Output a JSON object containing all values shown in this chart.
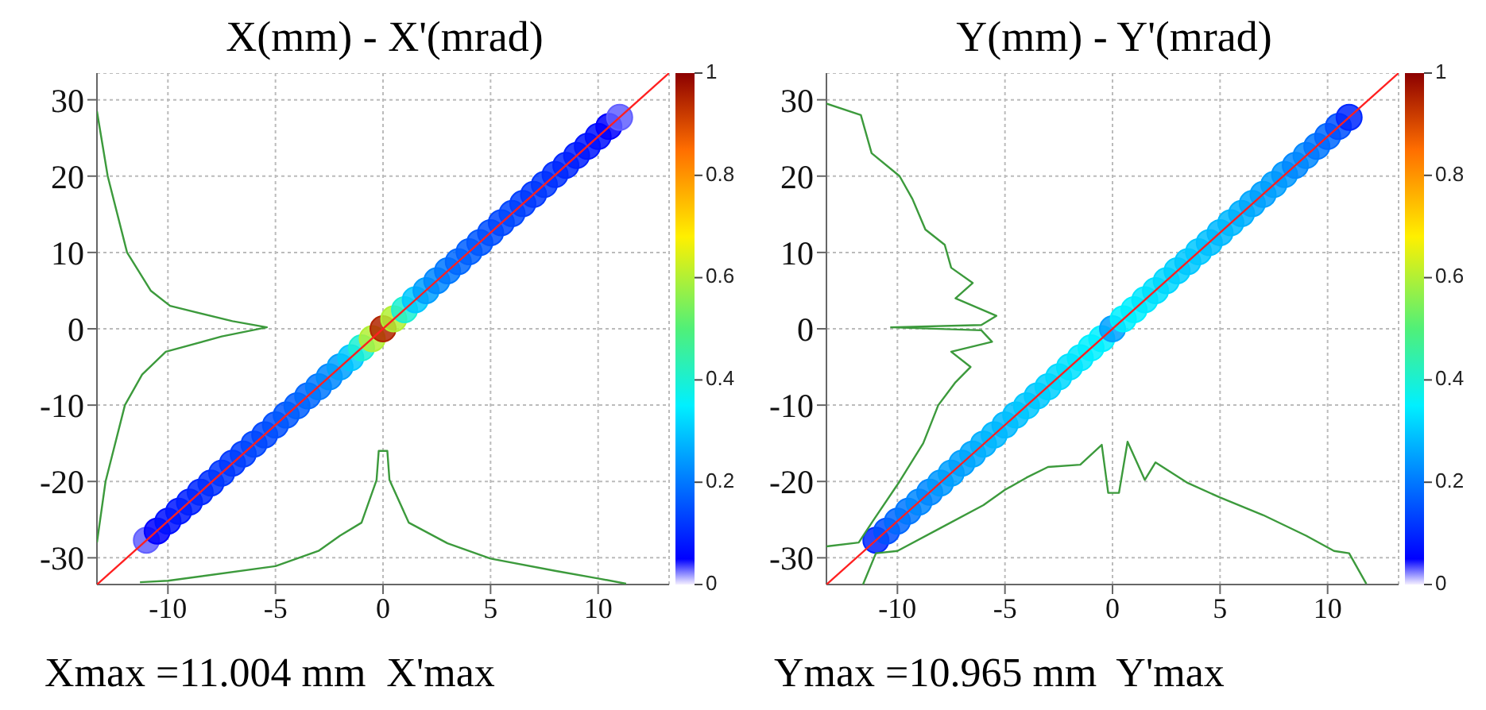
{
  "chart_data": [
    {
      "type": "scatter",
      "title": "X(mm) - X'(mrad)",
      "annotations": [
        "Xmax =11.004 mm  X'max"
      ],
      "xlim": [
        -13.3,
        13.3
      ],
      "ylim": [
        -33.5,
        33.5
      ],
      "xticks": [
        -10,
        -5,
        0,
        5,
        10
      ],
      "yticks": [
        -30,
        -20,
        -10,
        0,
        10,
        20,
        30
      ],
      "grid": true,
      "clim": [
        0,
        1
      ],
      "cticks": [
        0,
        0.2,
        0.4,
        0.6,
        0.8,
        1
      ],
      "series": [
        {
          "x": [
            -11,
            -10.5,
            -10,
            -9.5,
            -9,
            -8.5,
            -8,
            -7.5,
            -7,
            -6.5,
            -6,
            -5.5,
            -5,
            -4.5,
            -4,
            -3.5,
            -3,
            -2.5,
            -2,
            -1.5,
            -1,
            -0.5,
            0,
            0.5,
            1,
            1.5,
            2,
            2.5,
            3,
            3.5,
            4,
            4.5,
            5,
            5.5,
            6,
            6.5,
            7,
            7.5,
            8,
            8.5,
            9,
            9.5,
            10,
            10.5,
            11
          ],
          "values": [
            -27.7,
            -26.5,
            -25.2,
            -23.9,
            -22.7,
            -21.4,
            -20.2,
            -18.9,
            -17.6,
            -16.4,
            -15.1,
            -13.9,
            -12.6,
            -11.3,
            -10.1,
            -8.8,
            -7.6,
            -6.3,
            -5,
            -3.8,
            -2.5,
            -1.3,
            0,
            1.3,
            2.5,
            3.8,
            5,
            6.3,
            7.6,
            8.8,
            10.1,
            11.3,
            12.6,
            13.9,
            15.1,
            16.4,
            17.6,
            18.9,
            20.2,
            21.4,
            22.7,
            23.9,
            25.2,
            26.5,
            27.7
          ],
          "cvalues": [
            0.03,
            0.05,
            0.07,
            0.08,
            0.09,
            0.1,
            0.11,
            0.12,
            0.12,
            0.13,
            0.14,
            0.14,
            0.15,
            0.16,
            0.17,
            0.18,
            0.2,
            0.22,
            0.25,
            0.3,
            0.4,
            0.6,
            0.95,
            0.6,
            0.4,
            0.3,
            0.25,
            0.22,
            0.2,
            0.18,
            0.17,
            0.16,
            0.15,
            0.14,
            0.14,
            0.13,
            0.12,
            0.12,
            0.11,
            0.1,
            0.09,
            0.08,
            0.07,
            0.05,
            0.03
          ],
          "colors": [
            "#6260ff",
            "#0000ff",
            "#0010ff",
            "#0018ff",
            "#0020ff",
            "#0028ff",
            "#0030ff",
            "#0038ff",
            "#0038ff",
            "#0040ff",
            "#0048ff",
            "#0048ff",
            "#0050ff",
            "#0058ff",
            "#0060ff",
            "#0068ff",
            "#0078ff",
            "#0088ff",
            "#00a0ff",
            "#00c8ff",
            "#1bf0d2",
            "#b1f035",
            "#b22500",
            "#b1f035",
            "#1bf0d2",
            "#00c8ff",
            "#00a0ff",
            "#0088ff",
            "#0078ff",
            "#0068ff",
            "#0060ff",
            "#0058ff",
            "#0050ff",
            "#0048ff",
            "#0048ff",
            "#0040ff",
            "#0038ff",
            "#0038ff",
            "#0030ff",
            "#0028ff",
            "#0020ff",
            "#0018ff",
            "#0010ff",
            "#0000ff",
            "#6260ff"
          ]
        },
        {
          "type": "line",
          "color": "#ff2020",
          "x": [
            -13.3,
            13.3
          ],
          "values": [
            -33.5,
            33.5
          ]
        },
        {
          "type": "line",
          "color": "#3c9a3c",
          "x": [
            -11.3,
            -10,
            -5,
            -3,
            -2,
            -1,
            -0.3,
            -0.2,
            0.2,
            0.3,
            1.2,
            3,
            5,
            8,
            10,
            11.3
          ],
          "values": [
            -33.2,
            -33,
            -31.1,
            -29.1,
            -27.1,
            -25.4,
            -19.8,
            -16,
            -16,
            -19.8,
            -25.4,
            -28.1,
            -30.1,
            -31.7,
            -32.7,
            -33.4
          ]
        },
        {
          "type": "line",
          "color": "#3c9a3c",
          "x": [
            -13.3,
            -12.8,
            -11.9,
            -10.8,
            -9.9,
            -7,
            -5.4,
            -7.5,
            -10.1,
            -11.2,
            -12,
            -12.9,
            -13.3
          ],
          "values": [
            28.5,
            20,
            10,
            5,
            3,
            1,
            0.2,
            -1,
            -3,
            -6,
            -10,
            -20,
            -28
          ]
        }
      ]
    },
    {
      "type": "scatter",
      "title": "Y(mm) - Y'(mrad)",
      "annotations": [
        "Ymax =10.965 mm  Y'max"
      ],
      "xlim": [
        -13.3,
        13.3
      ],
      "ylim": [
        -33.5,
        33.5
      ],
      "xticks": [
        -10,
        -5,
        0,
        5,
        10
      ],
      "yticks": [
        -30,
        -20,
        -10,
        0,
        10,
        20,
        30
      ],
      "grid": true,
      "clim": [
        0,
        1
      ],
      "cticks": [
        0,
        0.2,
        0.4,
        0.6,
        0.8,
        1
      ],
      "series": [
        {
          "x": [
            -11,
            -10.5,
            -10,
            -9.5,
            -9,
            -8.5,
            -8,
            -7.5,
            -7,
            -6.5,
            -6,
            -5.5,
            -5,
            -4.5,
            -4,
            -3.5,
            -3,
            -2.5,
            -2,
            -1.5,
            -1,
            -0.5,
            0,
            0.5,
            1,
            1.5,
            2,
            2.5,
            3,
            3.5,
            4,
            4.5,
            5,
            5.5,
            6,
            6.5,
            7,
            7.5,
            8,
            8.5,
            9,
            9.5,
            10,
            10.5,
            11
          ],
          "values": [
            -27.7,
            -26.5,
            -25.2,
            -23.9,
            -22.7,
            -21.4,
            -20.2,
            -18.9,
            -17.6,
            -16.4,
            -15.1,
            -13.9,
            -12.6,
            -11.3,
            -10.1,
            -8.8,
            -7.6,
            -6.3,
            -5,
            -3.8,
            -2.5,
            -1.3,
            0,
            1.3,
            2.5,
            3.8,
            5,
            6.3,
            7.6,
            8.8,
            10.1,
            11.3,
            12.6,
            13.9,
            15.1,
            16.4,
            17.6,
            18.9,
            20.2,
            21.4,
            22.7,
            23.9,
            25.2,
            26.5,
            27.7
          ],
          "cvalues": [
            0.1,
            0.15,
            0.18,
            0.2,
            0.22,
            0.22,
            0.24,
            0.25,
            0.25,
            0.26,
            0.27,
            0.28,
            0.28,
            0.29,
            0.3,
            0.3,
            0.31,
            0.32,
            0.33,
            0.34,
            0.35,
            0.35,
            0.25,
            0.35,
            0.35,
            0.34,
            0.33,
            0.32,
            0.31,
            0.3,
            0.3,
            0.29,
            0.28,
            0.28,
            0.27,
            0.26,
            0.25,
            0.25,
            0.24,
            0.22,
            0.22,
            0.2,
            0.18,
            0.15,
            0.1
          ],
          "colors": [
            "#0028ff",
            "#0050ff",
            "#0068ff",
            "#0078ff",
            "#0088ff",
            "#0088ff",
            "#0098ff",
            "#00a0ff",
            "#00a0ff",
            "#00a8ff",
            "#00b0ff",
            "#00b8ff",
            "#00b8ff",
            "#00c0ff",
            "#00c8ff",
            "#00c8ff",
            "#00d0ff",
            "#00d8ff",
            "#00e0ff",
            "#00e8ff",
            "#00f0ff",
            "#00f0ff",
            "#00a0ff",
            "#00f0ff",
            "#00f0ff",
            "#00e8ff",
            "#00e0ff",
            "#00d8ff",
            "#00d0ff",
            "#00c8ff",
            "#00c8ff",
            "#00c0ff",
            "#00b8ff",
            "#00b8ff",
            "#00b0ff",
            "#00a8ff",
            "#00a0ff",
            "#00a0ff",
            "#0098ff",
            "#0088ff",
            "#0088ff",
            "#0078ff",
            "#0068ff",
            "#0050ff",
            "#0028ff"
          ]
        },
        {
          "type": "line",
          "color": "#ff2020",
          "x": [
            -13.3,
            13.3
          ],
          "values": [
            -33.5,
            33.5
          ]
        },
        {
          "type": "line",
          "color": "#3c9a3c",
          "x": [
            -11.6,
            -11,
            -10,
            -8,
            -6,
            -5,
            -4,
            -3,
            -1.5,
            -0.5,
            -0.2,
            0.3,
            0.7,
            1.5,
            2,
            3.5,
            5,
            7,
            9,
            10.3,
            11,
            11.8
          ],
          "values": [
            -33.5,
            -29.4,
            -29.1,
            -26.1,
            -23.1,
            -21.1,
            -19.5,
            -18.1,
            -17.8,
            -15.2,
            -21.5,
            -21.5,
            -14.8,
            -19.8,
            -17.5,
            -20.2,
            -22.1,
            -24.4,
            -27.1,
            -29.1,
            -29.4,
            -33.4
          ]
        },
        {
          "type": "line",
          "color": "#3c9a3c",
          "x": [
            -13.3,
            -11.7,
            -11.2,
            -9.9,
            -9.3,
            -8.7,
            -7.8,
            -7.5,
            -6.5,
            -7.3,
            -5.4,
            -6.1,
            -10.3,
            -6.1,
            -5.6,
            -7.5,
            -6.6,
            -7.3,
            -8.1,
            -8.8,
            -9.9,
            -11.1,
            -11.8,
            -13.3
          ],
          "values": [
            29.5,
            28,
            23,
            20,
            17,
            13,
            11,
            8,
            6,
            4,
            1.7,
            0.5,
            0.2,
            -0.2,
            -1.7,
            -3,
            -5,
            -7,
            -10,
            -15,
            -20,
            -25,
            -28,
            -28.5
          ]
        }
      ]
    }
  ]
}
